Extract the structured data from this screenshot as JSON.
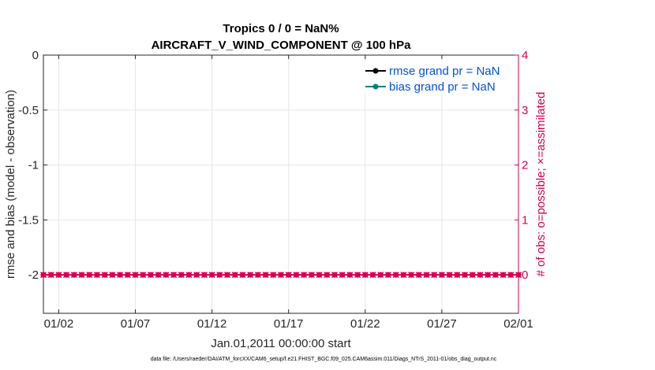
{
  "chart_data": {
    "type": "line",
    "title": "Tropics 0 / 0 = NaN%",
    "subtitle": "AIRCRAFT_V_WIND_COMPONENT @ 100 hPa",
    "xlabel": "Jan.01,2011 00:00:00 start",
    "ylabel_left": "rmse and bias (model - observation)",
    "ylabel_right": "# of obs: o=possible; ×=assimilated",
    "x_ticks": [
      "01/02",
      "01/07",
      "01/12",
      "01/17",
      "01/22",
      "01/27",
      "02/01"
    ],
    "xlim": [
      "2011-01-01",
      "2011-02-01"
    ],
    "ylim_left": [
      -2.35,
      0
    ],
    "yticks_left": [
      "0",
      "-0.5",
      "-1",
      "-1.5",
      "-2"
    ],
    "ylim_right": [
      -0.7,
      4
    ],
    "yticks_right": [
      "0",
      "1",
      "2",
      "3",
      "4"
    ],
    "grid": true,
    "legend_position": "top-right",
    "series": [
      {
        "name": "rmse grand pr = NaN",
        "color": "#000000",
        "marker": "circle",
        "values": []
      },
      {
        "name": "bias grand pr = NaN",
        "color": "#008080",
        "marker": "circle",
        "values": []
      },
      {
        "color": "#d6004f",
        "axis": "right",
        "marker": "circle-and-x",
        "x": [
          "2011-01-01",
          "2011-01-01",
          "2011-01-02",
          "2011-01-02",
          "2011-01-03",
          "2011-01-03",
          "2011-01-04",
          "2011-01-04",
          "2011-01-05",
          "2011-01-05",
          "2011-01-06",
          "2011-01-06",
          "2011-01-07",
          "2011-01-07",
          "2011-01-08",
          "2011-01-08",
          "2011-01-09",
          "2011-01-09",
          "2011-01-10",
          "2011-01-10",
          "2011-01-11",
          "2011-01-11",
          "2011-01-12",
          "2011-01-12",
          "2011-01-13",
          "2011-01-13",
          "2011-01-14",
          "2011-01-14",
          "2011-01-15",
          "2011-01-15",
          "2011-01-16",
          "2011-01-16",
          "2011-01-17",
          "2011-01-17",
          "2011-01-18",
          "2011-01-18",
          "2011-01-19",
          "2011-01-19",
          "2011-01-20",
          "2011-01-20",
          "2011-01-21",
          "2011-01-21",
          "2011-01-22",
          "2011-01-22",
          "2011-01-23",
          "2011-01-23",
          "2011-01-24",
          "2011-01-24",
          "2011-01-25",
          "2011-01-25",
          "2011-01-26",
          "2011-01-26",
          "2011-01-27",
          "2011-01-27",
          "2011-01-28",
          "2011-01-28",
          "2011-01-29",
          "2011-01-29",
          "2011-01-30",
          "2011-01-30",
          "2011-01-31",
          "2011-01-31",
          "2011-02-01"
        ],
        "values": [
          0,
          0,
          0,
          0,
          0,
          0,
          0,
          0,
          0,
          0,
          0,
          0,
          0,
          0,
          0,
          0,
          0,
          0,
          0,
          0,
          0,
          0,
          0,
          0,
          0,
          0,
          0,
          0,
          0,
          0,
          0,
          0,
          0,
          0,
          0,
          0,
          0,
          0,
          0,
          0,
          0,
          0,
          0,
          0,
          0,
          0,
          0,
          0,
          0,
          0,
          0,
          0,
          0,
          0,
          0,
          0,
          0,
          0,
          0,
          0,
          0,
          0,
          0
        ]
      }
    ],
    "colors": {
      "left_axis": "#262626",
      "right_axis": "#d6004f",
      "legend_text": "#0050e6",
      "grid": "#e6e6e6"
    }
  },
  "footer": {
    "text": "data file: /Users/raeder/DAI/ATM_forcXX/CAM6_setup/f.e21.FHIST_BGC.f09_025.CAM6assim.011/Diags_NTrS_2011-01/obs_diag_output.nc"
  }
}
